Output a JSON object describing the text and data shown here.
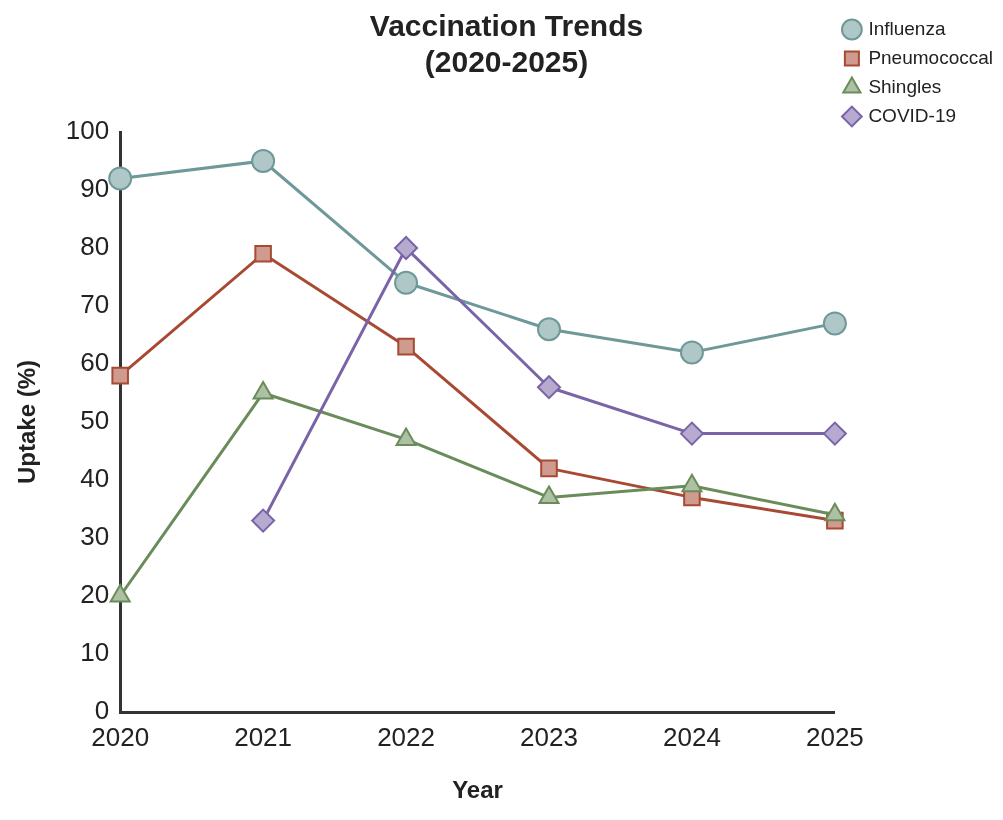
{
  "chart_data": {
    "type": "line",
    "title": "Vaccination Trends (2020-2025)",
    "xlabel": "Year",
    "ylabel": "Uptake (%)",
    "categories": [
      "2020",
      "2021",
      "2022",
      "2023",
      "2024",
      "2025"
    ],
    "series": [
      {
        "name": "Influenza",
        "color": "#6f9999",
        "marker": "circle",
        "values": [
          92,
          95,
          74,
          66,
          62,
          67
        ]
      },
      {
        "name": "Pneumococcal",
        "color": "#a84a33",
        "marker": "square",
        "values": [
          58,
          79,
          63,
          42,
          37,
          33
        ]
      },
      {
        "name": "Shingles",
        "color": "#6a8c5a",
        "marker": "triangle",
        "values": [
          20,
          55,
          47,
          37,
          39,
          34
        ]
      },
      {
        "name": "COVID-19",
        "color": "#7a64a8",
        "marker": "diamond",
        "values": [
          null,
          33,
          80,
          56,
          48,
          48
        ]
      }
    ],
    "ylim": [
      0,
      100
    ],
    "yticks": [
      0,
      10,
      20,
      30,
      40,
      50,
      60,
      70,
      80,
      90,
      100
    ],
    "grid": false,
    "legend": "top right",
    "line_style": "solid"
  }
}
